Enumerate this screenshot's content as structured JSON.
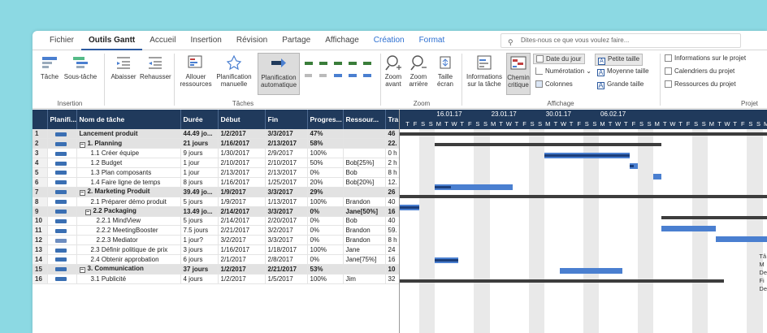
{
  "tabs": [
    {
      "label": "Fichier",
      "style": ""
    },
    {
      "label": "Outils Gantt",
      "style": "active"
    },
    {
      "label": "Accueil",
      "style": ""
    },
    {
      "label": "Insertion",
      "style": ""
    },
    {
      "label": "Révision",
      "style": ""
    },
    {
      "label": "Partage",
      "style": ""
    },
    {
      "label": "Affichage",
      "style": ""
    },
    {
      "label": "Création",
      "style": "blue"
    },
    {
      "label": "Format",
      "style": "blue"
    }
  ],
  "tellme": "Dites-nous ce que vous voulez faire...",
  "ribbon": {
    "tache": "Tâche",
    "sous_tache": "Sous-tâche",
    "abaisser": "Abaisser",
    "rehausser": "Rehausser",
    "allouer": "Allouer ressources",
    "plan_manuelle": "Planification manuelle",
    "plan_auto": "Planification automatique",
    "zoom_avant": "Zoom avant",
    "zoom_arriere": "Zoom arrière",
    "taille_ecran": "Taille écran",
    "infos_tache": "Informations sur la tâche",
    "chemin_critique": "Chemin critique",
    "date_du_jour": "Date du jour",
    "numerotation": "Numérotation",
    "colonnes": "Colonnes",
    "petite_taille": "Petite taille",
    "moyenne_taille": "Moyenne taille",
    "grande_taille": "Grande taille",
    "infos_projet": "Informations sur le projet",
    "calendriers": "Calendriers du projet",
    "ressources_projet": "Ressources du projet",
    "groups": {
      "insertion": "Insertion",
      "taches": "Tâches",
      "zoom": "Zoom",
      "affichage": "Affichage",
      "projet": "Projet"
    }
  },
  "columns": [
    "",
    "Planifi...",
    "Nom de tâche",
    "Durée",
    "Début",
    "Fin",
    "Progres...",
    "Ressour...",
    "Tra"
  ],
  "rows": [
    {
      "n": "1",
      "mode": "auto",
      "name": "Lancement produit",
      "indent": 0,
      "toggle": "",
      "dur": "44.49 jo...",
      "start": "1/2/2017",
      "end": "3/3/2017",
      "prog": "47%",
      "res": "",
      "work": "46",
      "sum": true
    },
    {
      "n": "2",
      "mode": "auto",
      "name": "1. Planning",
      "indent": 0,
      "toggle": "−",
      "dur": "21 jours",
      "start": "1/16/2017",
      "end": "2/13/2017",
      "prog": "58%",
      "res": "",
      "work": "22.",
      "sum": true
    },
    {
      "n": "3",
      "mode": "auto",
      "name": "1.1 Créer équipe",
      "indent": 2,
      "toggle": "",
      "dur": "9 jours",
      "start": "1/30/2017",
      "end": "2/9/2017",
      "prog": "100%",
      "res": "",
      "work": "0 h",
      "sum": false
    },
    {
      "n": "4",
      "mode": "auto",
      "name": "1.2 Budget",
      "indent": 2,
      "toggle": "",
      "dur": "1 jour",
      "start": "2/10/2017",
      "end": "2/10/2017",
      "prog": "50%",
      "res": "Bob[25%]",
      "work": "2 h",
      "sum": false
    },
    {
      "n": "5",
      "mode": "auto",
      "name": "1.3 Plan composants",
      "indent": 2,
      "toggle": "",
      "dur": "1 jour",
      "start": "2/13/2017",
      "end": "2/13/2017",
      "prog": "0%",
      "res": "Bob",
      "work": "8 h",
      "sum": false
    },
    {
      "n": "6",
      "mode": "auto",
      "name": "1.4 Faire ligne de temps",
      "indent": 2,
      "toggle": "",
      "dur": "8 jours",
      "start": "1/16/2017",
      "end": "1/25/2017",
      "prog": "20%",
      "res": "Bob[20%]",
      "work": "12.",
      "sum": false
    },
    {
      "n": "7",
      "mode": "auto",
      "name": "2. Marketing Produit",
      "indent": 0,
      "toggle": "−",
      "dur": "39.49 jo...",
      "start": "1/9/2017",
      "end": "3/3/2017",
      "prog": "29%",
      "res": "",
      "work": "26",
      "sum": true
    },
    {
      "n": "8",
      "mode": "auto",
      "name": "2.1 Préparer démo produit",
      "indent": 2,
      "toggle": "",
      "dur": "5 jours",
      "start": "1/9/2017",
      "end": "1/13/2017",
      "prog": "100%",
      "res": "Brandon",
      "work": "40",
      "sum": false
    },
    {
      "n": "9",
      "mode": "auto",
      "name": "2.2 Packaging",
      "indent": 1,
      "toggle": "−",
      "dur": "13.49 jo...",
      "start": "2/14/2017",
      "end": "3/3/2017",
      "prog": "0%",
      "res": "Jane[50%]",
      "work": "16",
      "sum": true
    },
    {
      "n": "10",
      "mode": "auto",
      "name": "2.2.1 MindView",
      "indent": 3,
      "toggle": "",
      "dur": "5 jours",
      "start": "2/14/2017",
      "end": "2/20/2017",
      "prog": "0%",
      "res": "Bob",
      "work": "40",
      "sum": false
    },
    {
      "n": "11",
      "mode": "auto",
      "name": "2.2.2 MeetingBooster",
      "indent": 3,
      "toggle": "",
      "dur": "7.5 jours",
      "start": "2/21/2017",
      "end": "3/2/2017",
      "prog": "0%",
      "res": "Brandon",
      "work": "59.",
      "sum": false
    },
    {
      "n": "12",
      "mode": "man",
      "name": "2.2.3 Mediator",
      "indent": 3,
      "toggle": "",
      "dur": "1 jour?",
      "start": "3/2/2017",
      "end": "3/3/2017",
      "prog": "0%",
      "res": "Brandon",
      "work": "8 h",
      "sum": false
    },
    {
      "n": "13",
      "mode": "auto",
      "name": "2.3 Définir politique de prix",
      "indent": 2,
      "toggle": "",
      "dur": "3 jours",
      "start": "1/16/2017",
      "end": "1/18/2017",
      "prog": "100%",
      "res": "Jane",
      "work": "24",
      "sum": false
    },
    {
      "n": "14",
      "mode": "auto",
      "name": "2.4 Obtenir approbation",
      "indent": 2,
      "toggle": "",
      "dur": "6 jours",
      "start": "2/1/2017",
      "end": "2/8/2017",
      "prog": "0%",
      "res": "Jane[75%]",
      "work": "16",
      "sum": false
    },
    {
      "n": "15",
      "mode": "auto",
      "name": "3. Communication",
      "indent": 0,
      "toggle": "−",
      "dur": "37 jours",
      "start": "1/2/2017",
      "end": "2/21/2017",
      "prog": "53%",
      "res": "",
      "work": "10",
      "sum": true
    },
    {
      "n": "16",
      "mode": "auto",
      "name": "3.1 Publicité",
      "indent": 2,
      "toggle": "",
      "dur": "4 jours",
      "start": "1/2/2017",
      "end": "1/5/2017",
      "prog": "100%",
      "res": "Jim",
      "work": "32",
      "sum": false
    }
  ],
  "timeline": {
    "weeks": [
      "16.01.17",
      "23.01.17",
      "30.01.17",
      "06.02.17"
    ],
    "day_letters": [
      "T",
      "F",
      "S",
      "S",
      "M",
      "T",
      "W",
      "T",
      "F",
      "S",
      "S",
      "M",
      "T",
      "W",
      "T",
      "F",
      "S",
      "S",
      "M",
      "T",
      "W",
      "T",
      "F",
      "S",
      "S",
      "M",
      "T",
      "W",
      "T",
      "F",
      "S",
      "S",
      "M",
      "T",
      "W",
      "T",
      "F",
      "S",
      "S",
      "M",
      "T",
      "W",
      "T",
      "F",
      "S",
      "S",
      "M"
    ]
  },
  "legend": [
    "Tâ",
    "M",
    "De",
    "Fi",
    "De"
  ],
  "colors": {
    "header_bg": "#203a5c",
    "bar": "#4a7fd0",
    "summary_bar": "#3d3d3d",
    "critical": "#c14040",
    "background": "#8cd9e3"
  }
}
